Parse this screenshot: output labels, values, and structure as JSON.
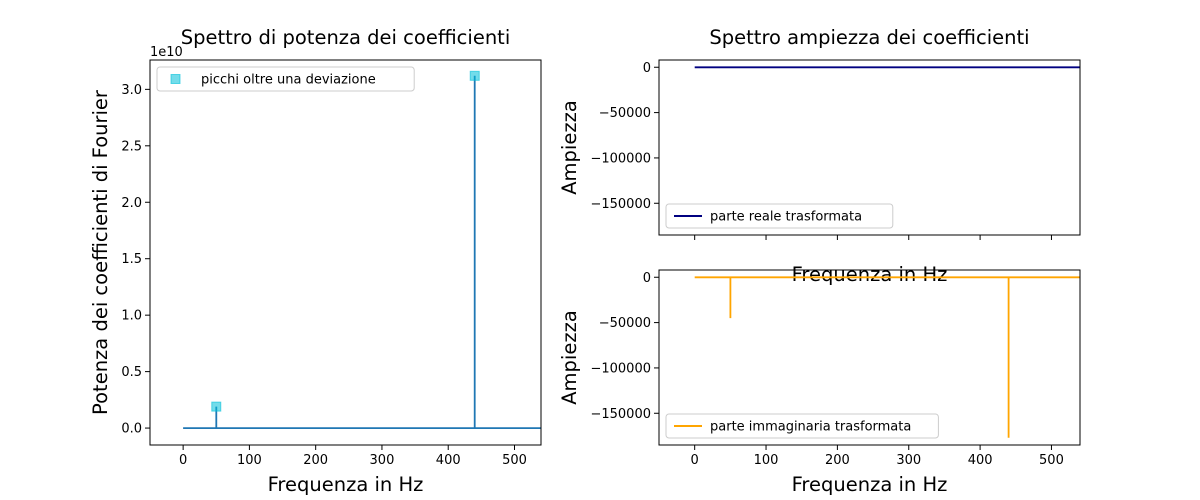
{
  "chart_data": [
    {
      "type": "line",
      "title": "Spettro di potenza dei coefficienti",
      "xlabel": "Frequenza in Hz",
      "ylabel": "Potenza dei coefficienti di Fourier",
      "y_offset_label": "1e10",
      "xlim": [
        -50,
        540
      ],
      "ylim": [
        -0.15,
        3.26
      ],
      "x_ticks": [
        0,
        100,
        200,
        300,
        400,
        500
      ],
      "x_tick_labels": [
        "0",
        "100",
        "200",
        "300",
        "400",
        "500"
      ],
      "y_ticks": [
        0.0,
        0.5,
        1.0,
        1.5,
        2.0,
        2.5,
        3.0
      ],
      "y_tick_labels": [
        "0.0",
        "0.5",
        "1.0",
        "1.5",
        "2.0",
        "2.5",
        "3.0"
      ],
      "grid": false,
      "colors": {
        "line": "#1f77b4",
        "marker": "#00c0d8"
      },
      "series": [
        {
          "x": [
            0,
            50,
            50,
            50,
            440,
            440,
            440,
            540
          ],
          "y": [
            0,
            0,
            0.19,
            0,
            0,
            3.12,
            0,
            0
          ]
        }
      ],
      "markers": {
        "name": "picchi oltre una deviazione",
        "x": [
          50,
          440
        ],
        "y": [
          0.19,
          3.12
        ]
      },
      "legend": {
        "position": "upper-left",
        "entries": [
          "picchi oltre una deviazione"
        ]
      }
    },
    {
      "type": "line",
      "title": "Spettro ampiezza dei coefficienti",
      "xlabel": "Frequenza in Hz",
      "ylabel": "Ampiezza",
      "xlim": [
        -50,
        540
      ],
      "ylim": [
        -185000,
        8000
      ],
      "x_ticks": [
        0,
        100,
        200,
        300,
        400,
        500
      ],
      "x_tick_labels": [],
      "y_ticks": [
        0,
        -50000,
        -100000,
        -150000
      ],
      "y_tick_labels": [
        "0",
        "−50000",
        "−100000",
        "−150000"
      ],
      "grid": false,
      "colors": {
        "line": "#000080"
      },
      "series": [
        {
          "name": "parte reale trasformata",
          "x": [
            0,
            540
          ],
          "y": [
            0,
            0
          ]
        }
      ],
      "legend": {
        "position": "lower-left",
        "entries": [
          "parte reale trasformata"
        ]
      }
    },
    {
      "type": "line",
      "xlabel": "Frequenza in Hz",
      "ylabel": "Ampiezza",
      "xlim": [
        -50,
        540
      ],
      "ylim": [
        -185000,
        8000
      ],
      "x_ticks": [
        0,
        100,
        200,
        300,
        400,
        500
      ],
      "x_tick_labels": [
        "0",
        "100",
        "200",
        "300",
        "400",
        "500"
      ],
      "y_ticks": [
        0,
        -50000,
        -100000,
        -150000
      ],
      "y_tick_labels": [
        "0",
        "−50000",
        "−100000",
        "−150000"
      ],
      "grid": false,
      "colors": {
        "line": "#ffa500"
      },
      "series": [
        {
          "name": "parte immaginaria trasformata",
          "x": [
            0,
            50,
            50,
            50,
            440,
            440,
            440,
            540
          ],
          "y": [
            0,
            0,
            -45000,
            0,
            0,
            -177000,
            0,
            0
          ]
        }
      ],
      "legend": {
        "position": "lower-left",
        "entries": [
          "parte immaginaria trasformata"
        ]
      }
    }
  ]
}
